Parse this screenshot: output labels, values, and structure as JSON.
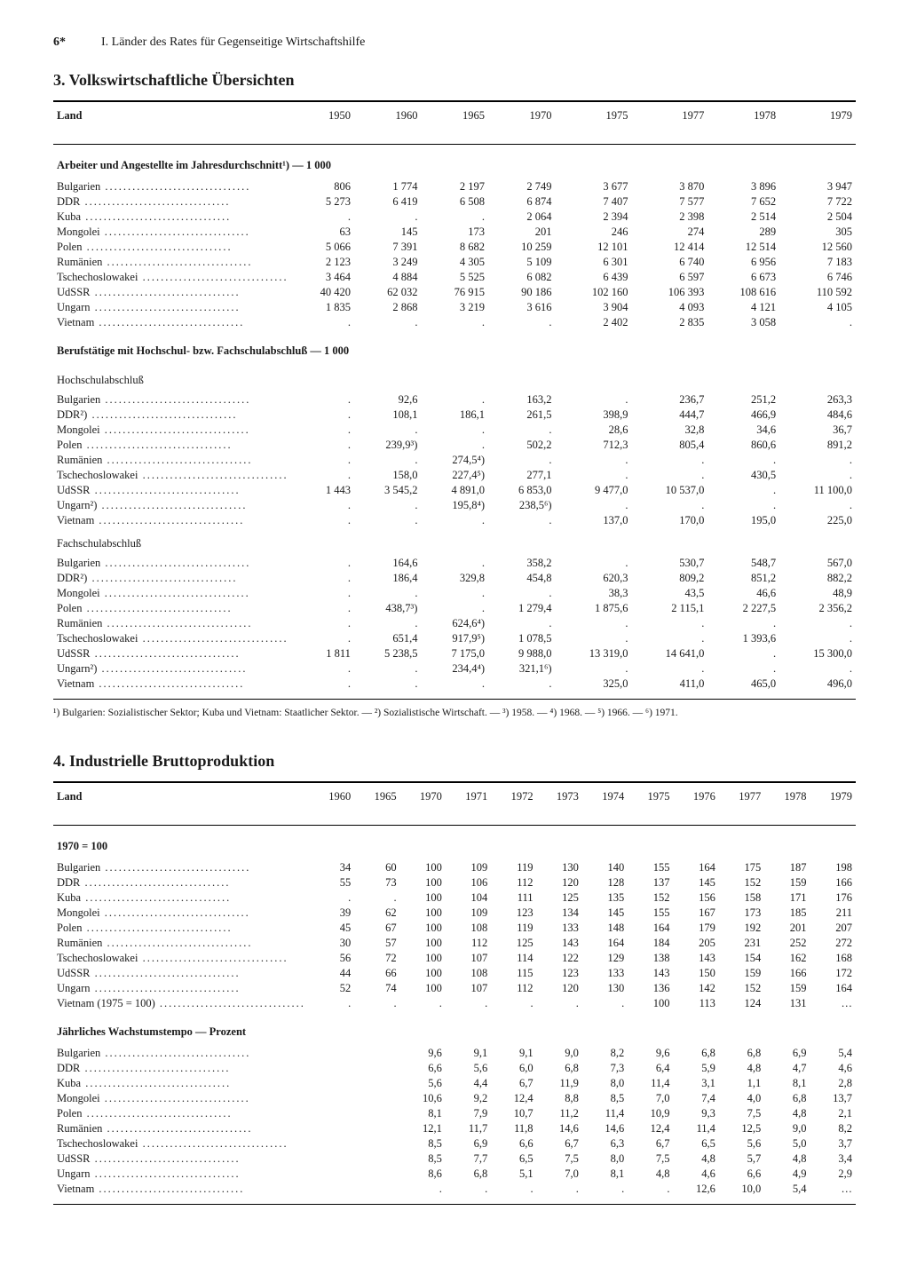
{
  "page": {
    "number": "6*",
    "chapter": "I. Länder des Rates für Gegenseitige Wirtschaftshilfe"
  },
  "section3": {
    "title": "3. Volkswirtschaftliche Übersichten",
    "colHeader": "Land",
    "years": [
      "1950",
      "1960",
      "1965",
      "1970",
      "1975",
      "1977",
      "1978",
      "1979"
    ],
    "groups": [
      {
        "title": "Arbeiter und Angestellte im Jahresdurchschnitt¹) — 1 000",
        "rows": [
          {
            "label": "Bulgarien",
            "v": [
              "806",
              "1 774",
              "2 197",
              "2 749",
              "3 677",
              "3 870",
              "3 896",
              "3 947"
            ]
          },
          {
            "label": "DDR",
            "v": [
              "5 273",
              "6 419",
              "6 508",
              "6 874",
              "7 407",
              "7 577",
              "7 652",
              "7 722"
            ]
          },
          {
            "label": "Kuba",
            "v": [
              ".",
              ".",
              ".",
              "2 064",
              "2 394",
              "2 398",
              "2 514",
              "2 504"
            ]
          },
          {
            "label": "Mongolei",
            "v": [
              "63",
              "145",
              "173",
              "201",
              "246",
              "274",
              "289",
              "305"
            ]
          },
          {
            "label": "Polen",
            "v": [
              "5 066",
              "7 391",
              "8 682",
              "10 259",
              "12 101",
              "12 414",
              "12 514",
              "12 560"
            ]
          },
          {
            "label": "Rumänien",
            "v": [
              "2 123",
              "3 249",
              "4 305",
              "5 109",
              "6 301",
              "6 740",
              "6 956",
              "7 183"
            ]
          },
          {
            "label": "Tschechoslowakei",
            "v": [
              "3 464",
              "4 884",
              "5 525",
              "6 082",
              "6 439",
              "6 597",
              "6 673",
              "6 746"
            ]
          },
          {
            "label": "UdSSR",
            "v": [
              "40 420",
              "62 032",
              "76 915",
              "90 186",
              "102 160",
              "106 393",
              "108 616",
              "110 592"
            ]
          },
          {
            "label": "Ungarn",
            "v": [
              "1 835",
              "2 868",
              "3 219",
              "3 616",
              "3 904",
              "4 093",
              "4 121",
              "4 105"
            ]
          },
          {
            "label": "Vietnam",
            "v": [
              ".",
              ".",
              ".",
              ".",
              "2 402",
              "2 835",
              "3 058",
              "."
            ]
          }
        ]
      },
      {
        "title": "Berufstätige mit Hochschul- bzw. Fachschulabschluß — 1 000",
        "subtitle": "Hochschulabschluß",
        "rows": [
          {
            "label": "Bulgarien",
            "v": [
              ".",
              "92,6",
              ".",
              "163,2",
              ".",
              "236,7",
              "251,2",
              "263,3"
            ]
          },
          {
            "label": "DDR²)",
            "v": [
              ".",
              "108,1",
              "186,1",
              "261,5",
              "398,9",
              "444,7",
              "466,9",
              "484,6"
            ]
          },
          {
            "label": "Mongolei",
            "v": [
              ".",
              ".",
              ".",
              ".",
              "28,6",
              "32,8",
              "34,6",
              "36,7"
            ]
          },
          {
            "label": "Polen",
            "v": [
              ".",
              "239,9³)",
              ".",
              "502,2",
              "712,3",
              "805,4",
              "860,6",
              "891,2"
            ]
          },
          {
            "label": "Rumänien",
            "v": [
              ".",
              ".",
              "274,5⁴)",
              ".",
              ".",
              ".",
              ".",
              "."
            ]
          },
          {
            "label": "Tschechoslowakei",
            "v": [
              ".",
              "158,0",
              "227,4⁵)",
              "277,1",
              ".",
              ".",
              "430,5",
              "."
            ]
          },
          {
            "label": "UdSSR",
            "v": [
              "1 443",
              "3 545,2",
              "4 891,0",
              "6 853,0",
              "9 477,0",
              "10 537,0",
              ".",
              "11 100,0"
            ]
          },
          {
            "label": "Ungarn²)",
            "v": [
              ".",
              ".",
              "195,8⁴)",
              "238,5⁶)",
              ".",
              ".",
              ".",
              "."
            ]
          },
          {
            "label": "Vietnam",
            "v": [
              ".",
              ".",
              ".",
              ".",
              "137,0",
              "170,0",
              "195,0",
              "225,0"
            ]
          }
        ]
      },
      {
        "subtitle": "Fachschulabschluß",
        "rows": [
          {
            "label": "Bulgarien",
            "v": [
              ".",
              "164,6",
              ".",
              "358,2",
              ".",
              "530,7",
              "548,7",
              "567,0"
            ]
          },
          {
            "label": "DDR²)",
            "v": [
              ".",
              "186,4",
              "329,8",
              "454,8",
              "620,3",
              "809,2",
              "851,2",
              "882,2"
            ]
          },
          {
            "label": "Mongolei",
            "v": [
              ".",
              ".",
              ".",
              ".",
              "38,3",
              "43,5",
              "46,6",
              "48,9"
            ]
          },
          {
            "label": "Polen",
            "v": [
              ".",
              "438,7³)",
              ".",
              "1 279,4",
              "1 875,6",
              "2 115,1",
              "2 227,5",
              "2 356,2"
            ]
          },
          {
            "label": "Rumänien",
            "v": [
              ".",
              ".",
              "624,6⁴)",
              ".",
              ".",
              ".",
              ".",
              "."
            ]
          },
          {
            "label": "Tschechoslowakei",
            "v": [
              ".",
              "651,4",
              "917,9⁵)",
              "1 078,5",
              ".",
              ".",
              "1 393,6",
              "."
            ]
          },
          {
            "label": "UdSSR",
            "v": [
              "1 811",
              "5 238,5",
              "7 175,0",
              "9 988,0",
              "13 319,0",
              "14 641,0",
              ".",
              "15 300,0"
            ]
          },
          {
            "label": "Ungarn²)",
            "v": [
              ".",
              ".",
              "234,4⁴)",
              "321,1⁶)",
              ".",
              ".",
              ".",
              "."
            ]
          },
          {
            "label": "Vietnam",
            "v": [
              ".",
              ".",
              ".",
              ".",
              "325,0",
              "411,0",
              "465,0",
              "496,0"
            ]
          }
        ]
      }
    ],
    "footnotes": "¹) Bulgarien: Sozialistischer Sektor; Kuba und Vietnam: Staatlicher Sektor. — ²) Sozialistische Wirtschaft. — ³) 1958. — ⁴) 1968. — ⁵) 1966. — ⁶) 1971."
  },
  "section4": {
    "title": "4. Industrielle Bruttoproduktion",
    "colHeader": "Land",
    "years": [
      "1960",
      "1965",
      "1970",
      "1971",
      "1972",
      "1973",
      "1974",
      "1975",
      "1976",
      "1977",
      "1978",
      "1979"
    ],
    "groups": [
      {
        "title": "1970 = 100",
        "rows": [
          {
            "label": "Bulgarien",
            "v": [
              "34",
              "60",
              "100",
              "109",
              "119",
              "130",
              "140",
              "155",
              "164",
              "175",
              "187",
              "198"
            ]
          },
          {
            "label": "DDR",
            "v": [
              "55",
              "73",
              "100",
              "106",
              "112",
              "120",
              "128",
              "137",
              "145",
              "152",
              "159",
              "166"
            ]
          },
          {
            "label": "Kuba",
            "v": [
              ".",
              ".",
              "100",
              "104",
              "111",
              "125",
              "135",
              "152",
              "156",
              "158",
              "171",
              "176"
            ]
          },
          {
            "label": "Mongolei",
            "v": [
              "39",
              "62",
              "100",
              "109",
              "123",
              "134",
              "145",
              "155",
              "167",
              "173",
              "185",
              "211"
            ]
          },
          {
            "label": "Polen",
            "v": [
              "45",
              "67",
              "100",
              "108",
              "119",
              "133",
              "148",
              "164",
              "179",
              "192",
              "201",
              "207"
            ]
          },
          {
            "label": "Rumänien",
            "v": [
              "30",
              "57",
              "100",
              "112",
              "125",
              "143",
              "164",
              "184",
              "205",
              "231",
              "252",
              "272"
            ]
          },
          {
            "label": "Tschechoslowakei",
            "v": [
              "56",
              "72",
              "100",
              "107",
              "114",
              "122",
              "129",
              "138",
              "143",
              "154",
              "162",
              "168"
            ]
          },
          {
            "label": "UdSSR",
            "v": [
              "44",
              "66",
              "100",
              "108",
              "115",
              "123",
              "133",
              "143",
              "150",
              "159",
              "166",
              "172"
            ]
          },
          {
            "label": "Ungarn",
            "v": [
              "52",
              "74",
              "100",
              "107",
              "112",
              "120",
              "130",
              "136",
              "142",
              "152",
              "159",
              "164"
            ]
          },
          {
            "label": "Vietnam (1975 = 100)",
            "v": [
              ".",
              ".",
              ".",
              ".",
              ".",
              ".",
              ".",
              "100",
              "113",
              "124",
              "131",
              "…"
            ]
          }
        ]
      },
      {
        "title": "Jährliches Wachstumstempo — Prozent",
        "rows": [
          {
            "label": "Bulgarien",
            "v": [
              "",
              "",
              "9,6",
              "9,1",
              "9,1",
              "9,0",
              "8,2",
              "9,6",
              "6,8",
              "6,8",
              "6,9",
              "5,4"
            ]
          },
          {
            "label": "DDR",
            "v": [
              "",
              "",
              "6,6",
              "5,6",
              "6,0",
              "6,8",
              "7,3",
              "6,4",
              "5,9",
              "4,8",
              "4,7",
              "4,6"
            ]
          },
          {
            "label": "Kuba",
            "v": [
              "",
              "",
              "5,6",
              "4,4",
              "6,7",
              "11,9",
              "8,0",
              "11,4",
              "3,1",
              "1,1",
              "8,1",
              "2,8"
            ]
          },
          {
            "label": "Mongolei",
            "v": [
              "",
              "",
              "10,6",
              "9,2",
              "12,4",
              "8,8",
              "8,5",
              "7,0",
              "7,4",
              "4,0",
              "6,8",
              "13,7"
            ]
          },
          {
            "label": "Polen",
            "v": [
              "",
              "",
              "8,1",
              "7,9",
              "10,7",
              "11,2",
              "11,4",
              "10,9",
              "9,3",
              "7,5",
              "4,8",
              "2,1"
            ]
          },
          {
            "label": "Rumänien",
            "v": [
              "",
              "",
              "12,1",
              "11,7",
              "11,8",
              "14,6",
              "14,6",
              "12,4",
              "11,4",
              "12,5",
              "9,0",
              "8,2"
            ]
          },
          {
            "label": "Tschechoslowakei",
            "v": [
              "",
              "",
              "8,5",
              "6,9",
              "6,6",
              "6,7",
              "6,3",
              "6,7",
              "6,5",
              "5,6",
              "5,0",
              "3,7"
            ]
          },
          {
            "label": "UdSSR",
            "v": [
              "",
              "",
              "8,5",
              "7,7",
              "6,5",
              "7,5",
              "8,0",
              "7,5",
              "4,8",
              "5,7",
              "4,8",
              "3,4"
            ]
          },
          {
            "label": "Ungarn",
            "v": [
              "",
              "",
              "8,6",
              "6,8",
              "5,1",
              "7,0",
              "8,1",
              "4,8",
              "4,6",
              "6,6",
              "4,9",
              "2,9"
            ]
          },
          {
            "label": "Vietnam",
            "v": [
              "",
              "",
              ".",
              ".",
              ".",
              ".",
              ".",
              ".",
              "12,6",
              "10,0",
              "5,4",
              "…"
            ]
          }
        ]
      }
    ]
  }
}
